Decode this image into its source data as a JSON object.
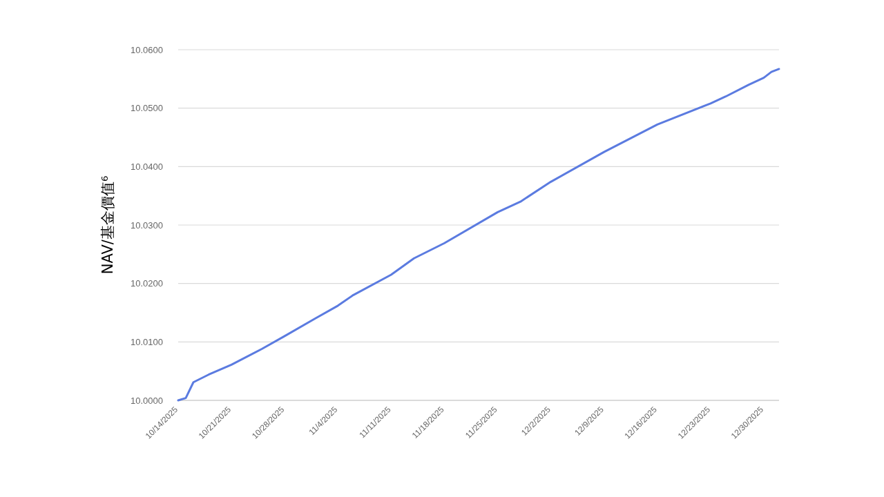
{
  "chart_data": {
    "type": "line",
    "ylabel": "NAV/基金價值⁶",
    "x": [
      "2025-10-14",
      "2025-10-15",
      "2025-10-16",
      "2025-10-18",
      "2025-10-21",
      "2025-10-25",
      "2025-10-28",
      "2025-11-01",
      "2025-11-04",
      "2025-11-06",
      "2025-11-11",
      "2025-11-14",
      "2025-11-18",
      "2025-11-25",
      "2025-11-28",
      "2025-12-02",
      "2025-12-09",
      "2025-12-16",
      "2025-12-23",
      "2025-12-25",
      "2025-12-28",
      "2025-12-30",
      "2025-12-31",
      "2026-01-01"
    ],
    "series": [
      {
        "color": "#5b7be0",
        "values": [
          10.0,
          10.0004,
          10.0031,
          10.0044,
          10.0061,
          10.0088,
          10.011,
          10.014,
          10.0162,
          10.018,
          10.0215,
          10.0243,
          10.0269,
          10.0322,
          10.034,
          10.0374,
          10.0425,
          10.0472,
          10.0508,
          10.052,
          10.054,
          10.0552,
          10.0562,
          10.0567
        ]
      }
    ],
    "xlim": [
      "2025-10-14",
      "2026-01-01"
    ],
    "xticks": [
      {
        "value": "2025-10-14",
        "label": "10/14/2025"
      },
      {
        "value": "2025-10-21",
        "label": "10/21/2025"
      },
      {
        "value": "2025-10-28",
        "label": "10/28/2025"
      },
      {
        "value": "2025-11-04",
        "label": "11/4/2025"
      },
      {
        "value": "2025-11-11",
        "label": "11/11/2025"
      },
      {
        "value": "2025-11-18",
        "label": "11/18/2025"
      },
      {
        "value": "2025-11-25",
        "label": "11/25/2025"
      },
      {
        "value": "2025-12-02",
        "label": "12/2/2025"
      },
      {
        "value": "2025-12-09",
        "label": "12/9/2025"
      },
      {
        "value": "2025-12-16",
        "label": "12/16/2025"
      },
      {
        "value": "2025-12-23",
        "label": "12/23/2025"
      },
      {
        "value": "2025-12-30",
        "label": "12/30/2025"
      }
    ],
    "ylim": [
      10.0,
      10.06
    ],
    "yticks": [
      {
        "value": 10.0,
        "label": "10.0000"
      },
      {
        "value": 10.01,
        "label": "10.0100"
      },
      {
        "value": 10.02,
        "label": "10.0200"
      },
      {
        "value": 10.03,
        "label": "10.0300"
      },
      {
        "value": 10.04,
        "label": "10.0400"
      },
      {
        "value": 10.05,
        "label": "10.0500"
      },
      {
        "value": 10.06,
        "label": "10.0600"
      }
    ],
    "grid": "y",
    "marker": "none",
    "line_style": "solid"
  }
}
